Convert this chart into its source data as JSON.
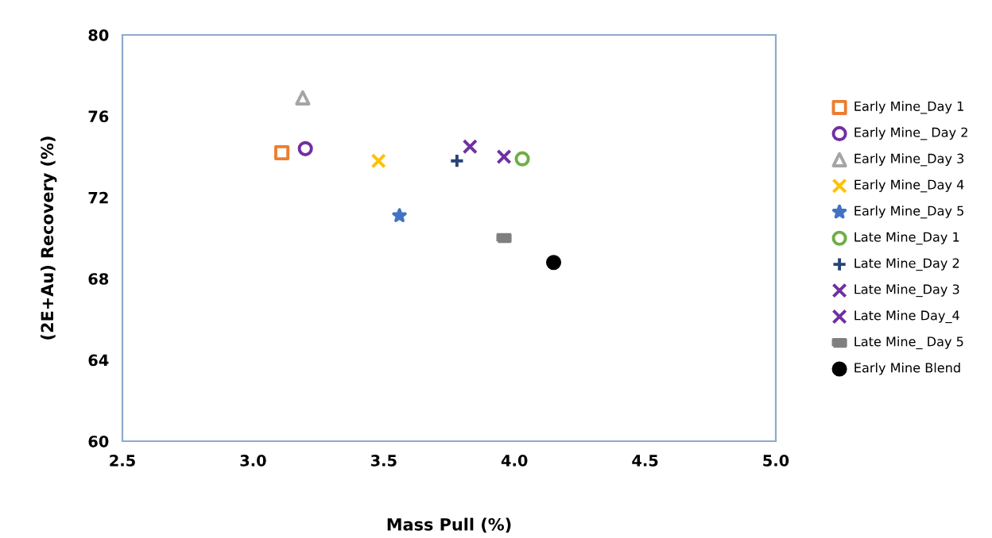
{
  "chart_data": {
    "type": "scatter",
    "xlabel": "Mass Pull (%)",
    "ylabel": "(2E+Au) Recovery (%)",
    "xlim": [
      2.5,
      5.0
    ],
    "xticks": [
      {
        "value": 2.5,
        "label": "2.5"
      },
      {
        "value": 3.0,
        "label": "3.0"
      },
      {
        "value": 3.5,
        "label": "3.5"
      },
      {
        "value": 4.0,
        "label": "4.0"
      },
      {
        "value": 4.5,
        "label": "4.5"
      },
      {
        "value": 5.0,
        "label": "5.0"
      }
    ],
    "ylim": [
      60,
      80
    ],
    "yticks": [
      60,
      64,
      68,
      72,
      76,
      80
    ],
    "grid": false,
    "legend": "right",
    "series": [
      {
        "name": "Early Mine_Day 1",
        "color": "#ed7d31",
        "marker": "square",
        "x": [
          3.11
        ],
        "values": [
          74.2
        ]
      },
      {
        "name": "Early Mine_ Day 2",
        "color": "#7030a0",
        "marker": "circle",
        "x": [
          3.2
        ],
        "values": [
          74.4
        ]
      },
      {
        "name": "Early Mine_Day 3",
        "color": "#a5a5a5",
        "marker": "triangle",
        "x": [
          3.19
        ],
        "values": [
          76.9
        ]
      },
      {
        "name": "Early Mine_Day 4",
        "color": "#ffc000",
        "marker": "cross",
        "x": [
          3.48
        ],
        "values": [
          73.8
        ]
      },
      {
        "name": "Early Mine_Day 5",
        "color": "#4472c4",
        "marker": "star",
        "x": [
          3.56
        ],
        "values": [
          71.1
        ]
      },
      {
        "name": "Late Mine_Day 1",
        "color": "#70ad47",
        "marker": "circle",
        "x": [
          4.03
        ],
        "values": [
          73.9
        ]
      },
      {
        "name": "Late Mine_Day 2",
        "color": "#264478",
        "marker": "plus",
        "x": [
          3.78
        ],
        "values": [
          73.8
        ]
      },
      {
        "name": "Late Mine_Day 3",
        "color": "#7030a0",
        "marker": "cross",
        "x": [
          3.83
        ],
        "values": [
          74.5
        ]
      },
      {
        "name": "Late Mine Day_4",
        "color": "#7030a0",
        "marker": "cross",
        "x": [
          3.96
        ],
        "values": [
          74.0
        ]
      },
      {
        "name": "Late Mine_ Day 5",
        "color": "#7f7f7f",
        "marker": "square",
        "x": [
          3.96
        ],
        "values": [
          70.0
        ]
      },
      {
        "name": "Early Mine Blend",
        "color": "#000000",
        "marker": "filled circle",
        "x": [
          4.15
        ],
        "values": [
          68.8
        ]
      }
    ]
  }
}
